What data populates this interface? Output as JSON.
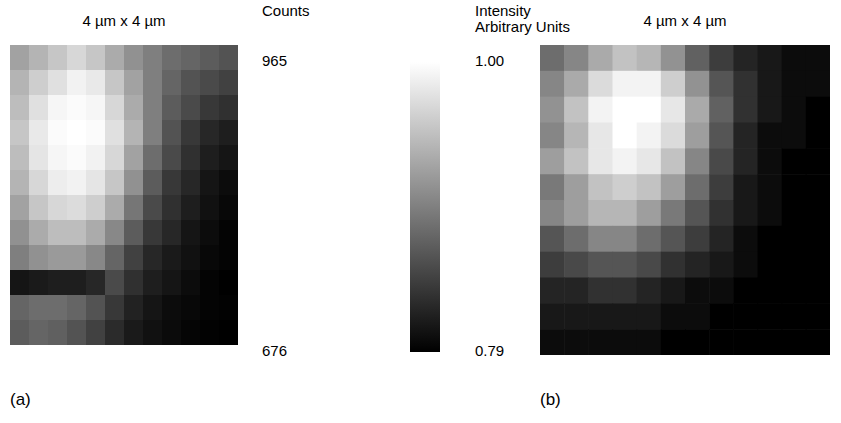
{
  "chart_data": [
    {
      "type": "heatmap",
      "title": "4 µm x 4 µm",
      "panel": "(a)",
      "cells": [
        [
          860,
          880,
          900,
          920,
          900,
          870,
          840,
          820,
          800,
          790,
          780,
          770
        ],
        [
          880,
          910,
          930,
          950,
          940,
          900,
          860,
          820,
          790,
          770,
          760,
          750
        ],
        [
          890,
          930,
          955,
          960,
          955,
          920,
          870,
          820,
          780,
          760,
          740,
          730
        ],
        [
          900,
          940,
          960,
          965,
          960,
          930,
          880,
          820,
          770,
          740,
          720,
          710
        ],
        [
          890,
          935,
          955,
          960,
          950,
          920,
          860,
          800,
          760,
          730,
          710,
          700
        ],
        [
          880,
          920,
          945,
          950,
          935,
          900,
          840,
          780,
          740,
          720,
          700,
          690
        ],
        [
          860,
          900,
          920,
          925,
          910,
          870,
          810,
          760,
          730,
          710,
          695,
          685
        ],
        [
          840,
          870,
          890,
          890,
          870,
          830,
          780,
          740,
          720,
          700,
          690,
          680
        ],
        [
          820,
          840,
          850,
          850,
          830,
          790,
          750,
          720,
          705,
          695,
          685,
          680
        ],
        [
          700,
          705,
          710,
          710,
          720,
          760,
          730,
          710,
          700,
          690,
          680,
          676
        ],
        [
          790,
          800,
          800,
          790,
          770,
          740,
          715,
          700,
          690,
          685,
          680,
          678
        ],
        [
          780,
          790,
          785,
          770,
          750,
          725,
          705,
          695,
          688,
          682,
          678,
          676
        ]
      ],
      "colorbar": {
        "label": "Counts",
        "range": [
          676,
          965
        ],
        "ticks": [
          676,
          965
        ]
      }
    },
    {
      "type": "heatmap",
      "title": "4 µm x 4 µm",
      "panel": "(b)",
      "cells": [
        [
          0.88,
          0.9,
          0.93,
          0.95,
          0.94,
          0.91,
          0.87,
          0.84,
          0.82,
          0.81,
          0.8,
          0.8
        ],
        [
          0.9,
          0.93,
          0.97,
          0.99,
          0.99,
          0.96,
          0.91,
          0.86,
          0.83,
          0.81,
          0.8,
          0.8
        ],
        [
          0.91,
          0.95,
          0.99,
          1.0,
          1.0,
          0.98,
          0.93,
          0.87,
          0.83,
          0.81,
          0.8,
          0.79
        ],
        [
          0.9,
          0.94,
          0.98,
          1.0,
          0.99,
          0.97,
          0.92,
          0.86,
          0.82,
          0.8,
          0.8,
          0.79
        ],
        [
          0.92,
          0.95,
          0.98,
          0.99,
          0.98,
          0.95,
          0.9,
          0.85,
          0.82,
          0.8,
          0.79,
          0.79
        ],
        [
          0.89,
          0.92,
          0.95,
          0.96,
          0.95,
          0.92,
          0.88,
          0.84,
          0.81,
          0.8,
          0.79,
          0.79
        ],
        [
          0.9,
          0.92,
          0.94,
          0.94,
          0.92,
          0.89,
          0.86,
          0.83,
          0.81,
          0.8,
          0.79,
          0.79
        ],
        [
          0.86,
          0.88,
          0.9,
          0.9,
          0.88,
          0.86,
          0.84,
          0.82,
          0.8,
          0.79,
          0.79,
          0.79
        ],
        [
          0.84,
          0.85,
          0.86,
          0.86,
          0.85,
          0.83,
          0.82,
          0.81,
          0.8,
          0.79,
          0.79,
          0.79
        ],
        [
          0.82,
          0.82,
          0.83,
          0.83,
          0.82,
          0.81,
          0.8,
          0.8,
          0.79,
          0.79,
          0.79,
          0.79
        ],
        [
          0.81,
          0.81,
          0.81,
          0.81,
          0.81,
          0.8,
          0.8,
          0.79,
          0.79,
          0.79,
          0.79,
          0.79
        ],
        [
          0.8,
          0.8,
          0.8,
          0.8,
          0.8,
          0.79,
          0.79,
          0.79,
          0.79,
          0.79,
          0.79,
          0.79
        ]
      ],
      "colorbar": {
        "label": "Intensity Arbitrary Units",
        "range": [
          0.79,
          1
        ],
        "ticks": [
          0.79,
          {
            "value": 1,
            "label": "1.00"
          }
        ]
      }
    }
  ]
}
